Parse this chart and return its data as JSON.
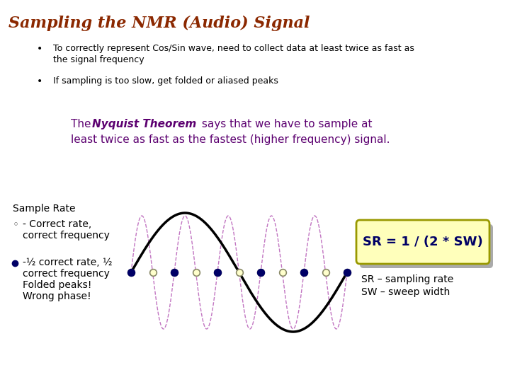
{
  "title": "Sampling the NMR (Audio) Signal",
  "title_color": "#8B2800",
  "title_fontsize": 16,
  "background_color": "#FFFFFF",
  "bullet1_line1": "To correctly represent Cos/Sin wave, need to collect data at least twice as fast as",
  "bullet1_line2": "the signal frequency",
  "bullet2": "If sampling is too slow, get folded or aliased peaks",
  "nyquist_color": "#5C0070",
  "sample_rate_label": "Sample Rate",
  "formula_text": "SR = 1 / (2 * SW)",
  "formula_bg": "#FFFFBB",
  "formula_border": "#999900",
  "formula_text_color": "#000066",
  "sr_text": "SR – sampling rate",
  "sw_text": "SW – sweep width",
  "wave_color_dashed": "#BB66BB",
  "wave_color_solid": "#000000",
  "dot_open_face": "#FFFFCC",
  "dot_open_edge": "#888866",
  "dot_filled_face": "#000066",
  "dot_filled_edge": "#000066"
}
